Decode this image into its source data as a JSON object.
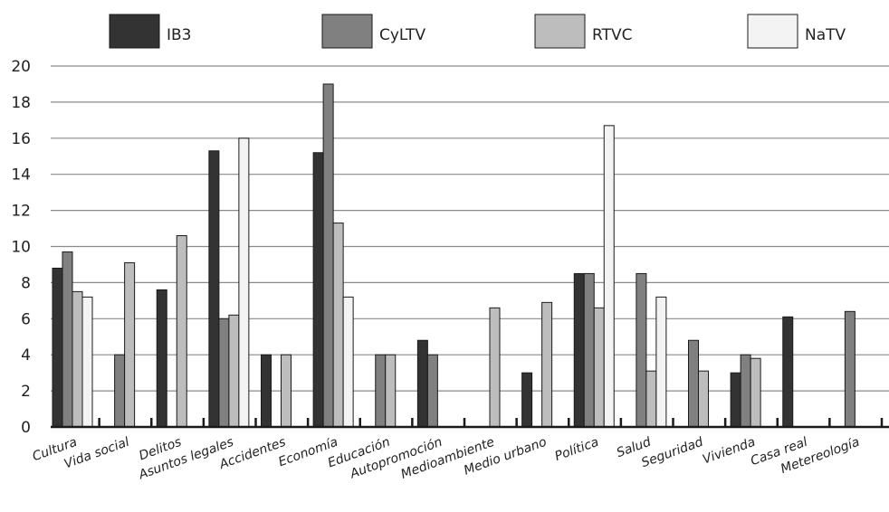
{
  "chart_data": {
    "type": "bar",
    "title": "",
    "xlabel": "",
    "ylabel": "",
    "ylim": [
      0,
      20
    ],
    "yticks": [
      0,
      2,
      4,
      6,
      8,
      10,
      12,
      14,
      16,
      18,
      20
    ],
    "grid": true,
    "legend_position": "top",
    "categories": [
      "Cultura",
      "Vida social",
      "Delitos",
      "Asuntos legales",
      "Accidentes",
      "Economía",
      "Educación",
      "Autopromoción",
      "Medioambiente",
      "Medio urbano",
      "Política",
      "Salud",
      "Seguridad",
      "Vivienda",
      "Casa real",
      "Metereología"
    ],
    "series": [
      {
        "name": "IB3",
        "color": "#333333",
        "values": [
          8.8,
          0,
          7.6,
          15.3,
          4.0,
          15.2,
          0,
          4.8,
          0,
          3.0,
          8.5,
          0,
          0,
          3.0,
          6.1,
          0
        ]
      },
      {
        "name": "CyLTV",
        "color": "#808080",
        "values": [
          9.7,
          4.0,
          0,
          6.0,
          0,
          19.0,
          4.0,
          4.0,
          0,
          0,
          8.5,
          8.5,
          4.8,
          4.0,
          0,
          6.4
        ]
      },
      {
        "name": "RTVC",
        "color": "#bdbdbe",
        "values": [
          7.5,
          9.1,
          10.6,
          6.2,
          4.0,
          11.3,
          4.0,
          0,
          6.6,
          6.9,
          6.6,
          3.1,
          3.1,
          3.8,
          0,
          0
        ]
      },
      {
        "name": "NaTV",
        "color": "#f3f3f3",
        "values": [
          7.2,
          0,
          0,
          16.0,
          0,
          7.2,
          0,
          0,
          0,
          0,
          16.7,
          7.2,
          0,
          0,
          0,
          0
        ]
      }
    ]
  }
}
